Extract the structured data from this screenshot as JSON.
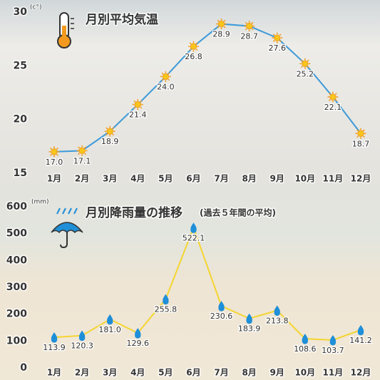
{
  "chart_data": [
    {
      "type": "line",
      "title": "月別平均気温",
      "unit": "(c°)",
      "categories": [
        "1月",
        "2月",
        "3月",
        "4月",
        "5月",
        "6月",
        "7月",
        "8月",
        "9月",
        "10月",
        "11月",
        "12月"
      ],
      "values": [
        17.0,
        17.1,
        18.9,
        21.4,
        24.0,
        26.8,
        28.9,
        28.7,
        27.6,
        25.2,
        22.1,
        18.7
      ],
      "value_labels": [
        "17.0",
        "17.1",
        "18.9",
        "21.4",
        "24.0",
        "26.8",
        "28.9",
        "28.7",
        "27.6",
        "25.2",
        "22.1",
        "18.7"
      ],
      "color": "#3d9ad9",
      "marker_color": "#f8c51c",
      "ylim": [
        15,
        30
      ],
      "yticks": [
        15,
        20,
        25,
        30
      ]
    },
    {
      "type": "line",
      "title": "月別降雨量の推移",
      "subtitle": "(過去５年間の平均)",
      "unit": "(mm)",
      "categories": [
        "1月",
        "2月",
        "3月",
        "4月",
        "5月",
        "6月",
        "7月",
        "8月",
        "9月",
        "10月",
        "11月",
        "12月"
      ],
      "values": [
        113.9,
        120.3,
        181.0,
        129.6,
        255.8,
        522.1,
        230.6,
        183.9,
        213.8,
        108.6,
        103.7,
        141.2
      ],
      "value_labels": [
        "113.9",
        "120.3",
        "181.0",
        "129.6",
        "255.8",
        "522.1",
        "230.6",
        "183.9",
        "213.8",
        "108.6",
        "103.7",
        "141.2"
      ],
      "color": "#f4d530",
      "marker_color": "#1f8fd8",
      "ylim": [
        0,
        600
      ],
      "yticks": [
        0,
        100,
        200,
        300,
        400,
        500,
        600
      ]
    }
  ]
}
